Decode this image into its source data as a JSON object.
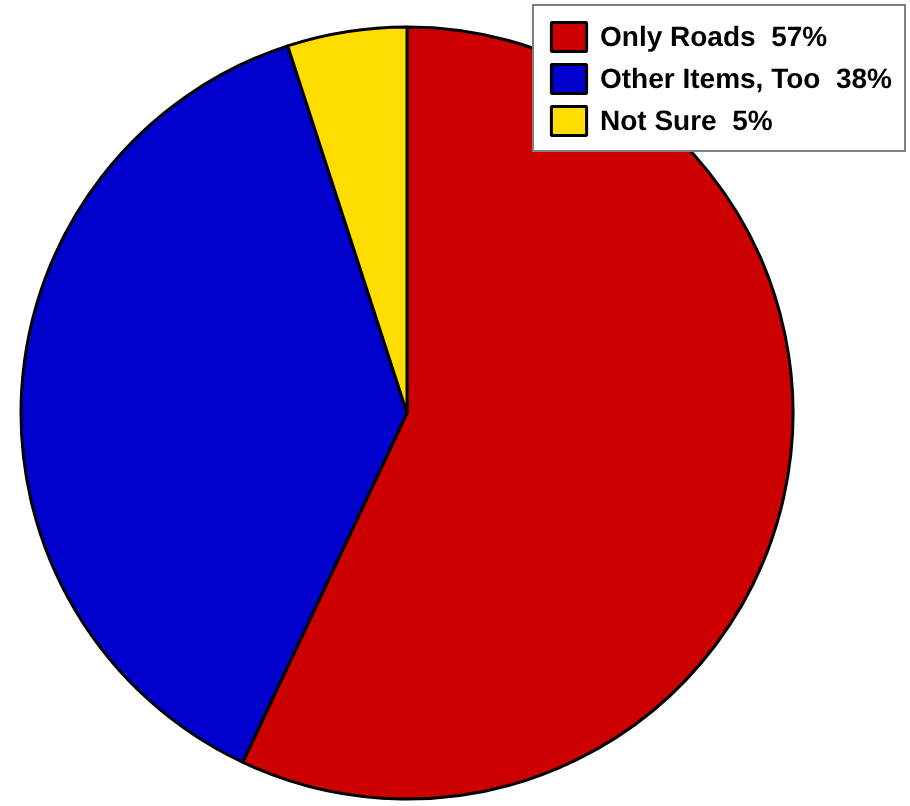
{
  "chart_data": {
    "type": "pie",
    "categories": [
      "Only Roads",
      "Other Items, Too",
      "Not Sure"
    ],
    "values": [
      57,
      38,
      5
    ],
    "value_labels": [
      "57%",
      "38%",
      "5%"
    ],
    "colors": [
      "#cc0000",
      "#0000cc",
      "#ffdd00"
    ],
    "legend": "top right"
  }
}
